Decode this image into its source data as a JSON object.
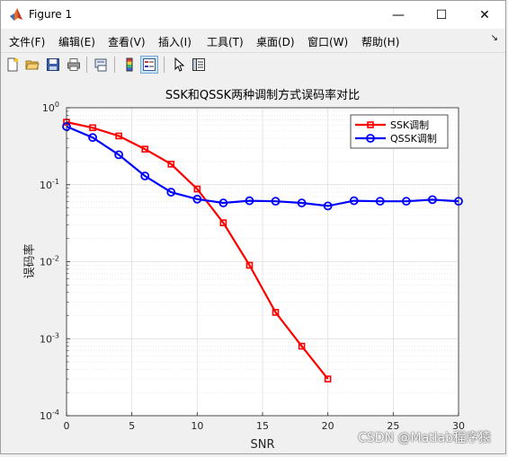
{
  "window": {
    "title": "Figure 1",
    "controls": {
      "minimize": "—",
      "maximize": "☐",
      "close": "✕"
    }
  },
  "menu": {
    "items": [
      "文件(F)",
      "编辑(E)",
      "查看(V)",
      "插入(I)",
      "工具(T)",
      "桌面(D)",
      "窗口(W)",
      "帮助(H)"
    ],
    "overflow_arrow": "↘"
  },
  "toolbar": {
    "buttons": [
      "new-figure-icon",
      "open-file-icon",
      "save-icon",
      "print-icon",
      "link-icon",
      "colorbar-icon",
      "legend-icon",
      "pointer-icon",
      "property-inspector-icon"
    ]
  },
  "watermark": "CSDN @Matlab程序猿",
  "chart_data": {
    "type": "line",
    "title": "SSK和QSSK两种调制方式误码率对比",
    "xlabel": "SNR",
    "ylabel": "误码率",
    "xlim": [
      0,
      30
    ],
    "ylim": [
      0.0001,
      1
    ],
    "yscale": "log",
    "xticks": [
      "0",
      "5",
      "10",
      "15",
      "20",
      "25",
      "30"
    ],
    "yticks": [
      "10",
      "10",
      "10",
      "10",
      "10"
    ],
    "ytick_exponents": [
      "-4",
      "-3",
      "-2",
      "-1",
      "0"
    ],
    "grid": true,
    "legend_position": "top-right",
    "series": [
      {
        "name": "SSK调制",
        "color": "#ff0000",
        "marker": "square",
        "x": [
          0,
          2,
          4,
          6,
          8,
          10,
          12,
          14,
          16,
          18,
          20
        ],
        "y": [
          0.65,
          0.55,
          0.43,
          0.29,
          0.185,
          0.088,
          0.032,
          0.009,
          0.0022,
          0.0008,
          0.0003
        ]
      },
      {
        "name": "QSSK调制",
        "color": "#0000ff",
        "marker": "circle",
        "x": [
          0,
          2,
          4,
          6,
          8,
          10,
          12,
          14,
          16,
          18,
          20,
          22,
          24,
          26,
          28,
          30
        ],
        "y": [
          0.57,
          0.41,
          0.245,
          0.13,
          0.08,
          0.065,
          0.058,
          0.062,
          0.061,
          0.058,
          0.053,
          0.062,
          0.061,
          0.061,
          0.064,
          0.061
        ]
      }
    ]
  }
}
